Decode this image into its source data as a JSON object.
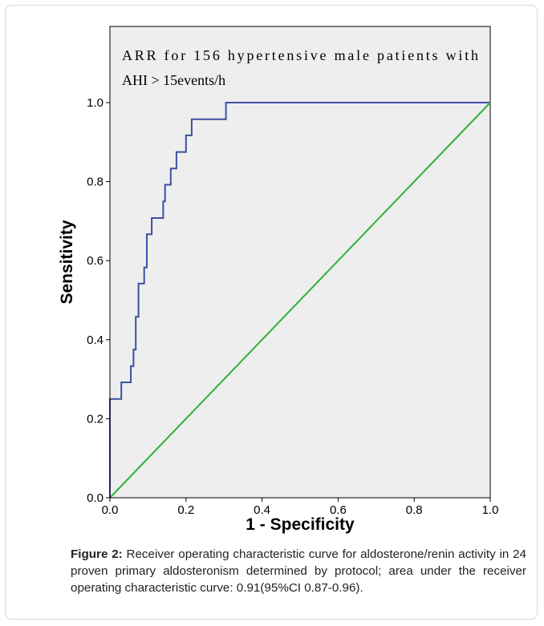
{
  "colors": {
    "plot_background": "#eeeeee",
    "roc_curve": "#3b4fa3",
    "reference_line": "#2db33a",
    "axis": "#000000"
  },
  "chart_data": {
    "type": "line",
    "annotation_lines": [
      "ARR for 156 hypertensive male patients with",
      "AHI > 15events/h"
    ],
    "xlabel": "1 - Specificity",
    "ylabel": "Sensitivity",
    "xlim": [
      0,
      1
    ],
    "ylim": [
      0,
      1
    ],
    "xticks": [
      "0.0",
      "0.2",
      "0.4",
      "0.6",
      "0.8",
      "1.0"
    ],
    "yticks": [
      "0.0",
      "0.2",
      "0.4",
      "0.6",
      "0.8",
      "1.0"
    ],
    "grid": false,
    "series": [
      {
        "role": "roc-curve",
        "color": "#3b4fa3",
        "x": [
          0.0,
          0.0,
          0.007,
          0.007,
          0.03,
          0.03,
          0.055,
          0.055,
          0.062,
          0.062,
          0.068,
          0.068,
          0.075,
          0.075,
          0.09,
          0.09,
          0.097,
          0.097,
          0.11,
          0.11,
          0.14,
          0.14,
          0.145,
          0.145,
          0.16,
          0.16,
          0.175,
          0.175,
          0.2,
          0.2,
          0.215,
          0.215,
          0.305,
          0.305,
          1.0
        ],
        "y": [
          0.0,
          0.25,
          0.25,
          0.25,
          0.25,
          0.292,
          0.292,
          0.333,
          0.333,
          0.375,
          0.375,
          0.458,
          0.458,
          0.542,
          0.542,
          0.583,
          0.583,
          0.667,
          0.667,
          0.708,
          0.708,
          0.75,
          0.75,
          0.792,
          0.792,
          0.833,
          0.833,
          0.875,
          0.875,
          0.917,
          0.917,
          0.958,
          0.958,
          1.0,
          1.0
        ]
      },
      {
        "role": "reference-line",
        "color": "#2db33a",
        "x": [
          0,
          1
        ],
        "y": [
          0,
          1
        ]
      }
    ]
  },
  "caption": {
    "label": "Figure 2:",
    "text": " Receiver operating characteristic curve for aldosterone/renin activity in 24 proven primary aldosteronism determined by protocol; area under the receiver operating characteristic curve: 0.91(95%CI 0.87-0.96)."
  }
}
